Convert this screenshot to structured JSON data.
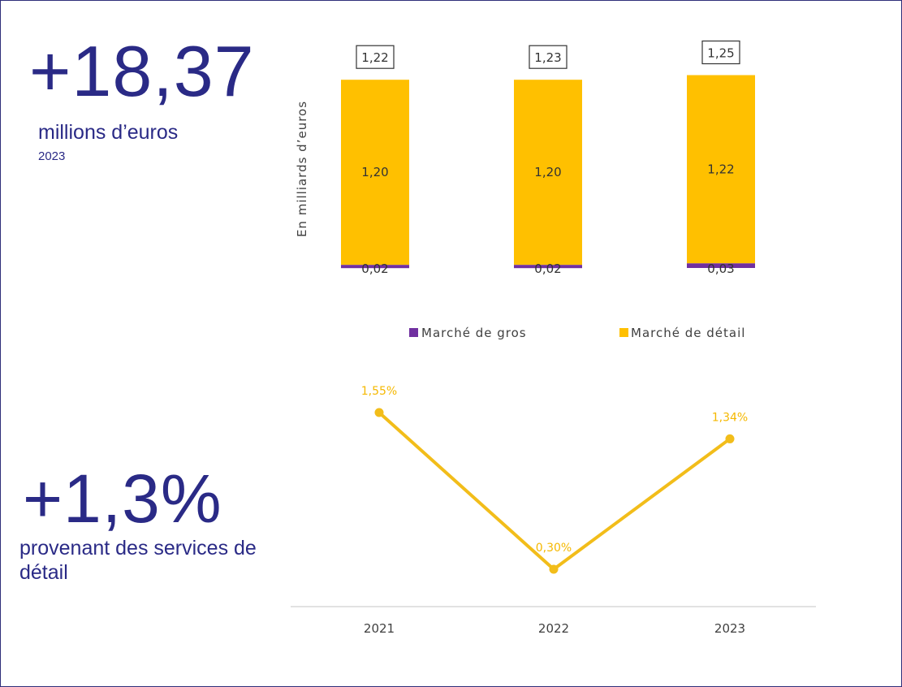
{
  "kpis": {
    "revenue": {
      "value": "+18,37",
      "label": "millions d’euros",
      "year": "2023"
    },
    "retail_share": {
      "value": "+1,3%",
      "label": "provenant des services de détail"
    }
  },
  "colors": {
    "wholesale": "#7030a0",
    "retail": "#ffc000",
    "line": "#f2bd1a",
    "kpi": "#2a2a86",
    "axis": "#d9d9d9"
  },
  "chart_data": [
    {
      "type": "bar",
      "stacked": true,
      "categories": [
        "2021",
        "2022",
        "2023"
      ],
      "ylabel": "En milliards d’euros",
      "series": [
        {
          "name": "Marché de gros",
          "values": [
            0.02,
            0.02,
            0.03
          ],
          "labels": [
            "0,02",
            "0,02",
            "0,03"
          ],
          "color": "#7030a0"
        },
        {
          "name": "Marché de détail",
          "values": [
            1.2,
            1.2,
            1.22
          ],
          "labels": [
            "1,20",
            "1,20",
            "1,22"
          ],
          "color": "#ffc000"
        }
      ],
      "totals": [
        1.22,
        1.23,
        1.25
      ],
      "total_labels": [
        "1,22",
        "1,23",
        "1,25"
      ],
      "legend": "bottom"
    },
    {
      "type": "line",
      "categories": [
        "2021",
        "2022",
        "2023"
      ],
      "values": [
        1.55,
        0.3,
        1.34
      ],
      "labels": [
        "1,55%",
        "0,30%",
        "1,34%"
      ],
      "color": "#f2bd1a"
    }
  ]
}
